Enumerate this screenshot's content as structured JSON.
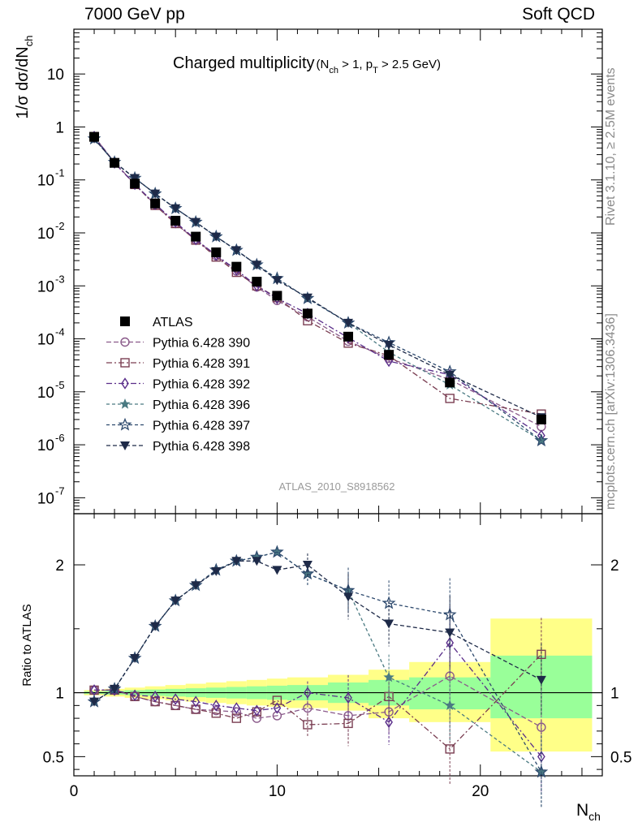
{
  "header": {
    "left": "7000 GeV pp",
    "right": "Soft QCD"
  },
  "side_labels": {
    "rivet": "Rivet 3.1.10, ≥ 2.5M events",
    "mcplots": "mcplots.cern.ch [arXiv:1306.3436]"
  },
  "colors": {
    "band_green": "#99ff99",
    "band_yellow": "#ffff88",
    "atlas": "#000000",
    "p390": "#8a5a8a",
    "p391": "#7a3e52",
    "p392": "#5a2e8a",
    "p396": "#4a7a82",
    "p397": "#2e4a6e",
    "p398": "#1e2a48"
  },
  "chart_data": [
    {
      "type": "scatter",
      "title": "Charged multiplicity",
      "title_sub": "(N_ch > 1, p_T > 2.5 GeV)",
      "ylabel": "1/σ dσ/dN_ch",
      "xlabel": "",
      "log_y": true,
      "xlim": [
        0,
        26
      ],
      "ylim": [
        5e-08,
        70
      ],
      "watermark": "ATLAS_2010_S8918562",
      "legend_position": "lower-left",
      "x": [
        1,
        2,
        3,
        4,
        5,
        6,
        7,
        8,
        9,
        10,
        11.5,
        13.5,
        15.5,
        18.5,
        23
      ],
      "series": [
        {
          "name": "ATLAS",
          "key": "atlas",
          "marker": "square-filled",
          "values": [
            0.65,
            0.21,
            0.085,
            0.036,
            0.017,
            0.0085,
            0.0043,
            0.0023,
            0.0012,
            0.00065,
            0.0003,
            0.00011,
            5e-05,
            1.5e-05,
            3e-06
          ]
        },
        {
          "name": "Pythia 6.428 390",
          "key": "p390",
          "marker": "circle-open",
          "values": [
            0.66,
            0.215,
            0.083,
            0.034,
            0.015,
            0.0074,
            0.0037,
            0.0019,
            0.00095,
            0.00053,
            0.00026,
            9e-05,
            4.3e-05,
            1.7e-05,
            2.2e-06
          ]
        },
        {
          "name": "Pythia 6.428 391",
          "key": "p391",
          "marker": "square-open",
          "values": [
            0.66,
            0.21,
            0.082,
            0.033,
            0.015,
            0.0073,
            0.0035,
            0.0018,
            0.001,
            0.0006,
            0.00022,
            8.3e-05,
            4.8e-05,
            7.5e-06,
            3.8e-06
          ]
        },
        {
          "name": "Pythia 6.428 392",
          "key": "p392",
          "marker": "diamond-open",
          "values": [
            0.66,
            0.21,
            0.083,
            0.035,
            0.016,
            0.0075,
            0.0038,
            0.002,
            0.001,
            0.00058,
            0.0003,
            0.000105,
            3.8e-05,
            2.1e-05,
            1.5e-06
          ]
        },
        {
          "name": "Pythia 6.428 396",
          "key": "p396",
          "marker": "star-filled",
          "values": [
            0.6,
            0.215,
            0.108,
            0.055,
            0.029,
            0.016,
            0.0085,
            0.0047,
            0.0025,
            0.00138,
            0.00058,
            0.0002,
            5.6e-05,
            1.35e-05,
            1.2e-06
          ]
        },
        {
          "name": "Pythia 6.428 397",
          "key": "p397",
          "marker": "star-open",
          "values": [
            0.6,
            0.215,
            0.108,
            0.055,
            0.029,
            0.016,
            0.0085,
            0.0047,
            0.0025,
            0.00138,
            0.00058,
            0.0002,
            8.5e-05,
            2.4e-05,
            1.2e-06
          ]
        },
        {
          "name": "Pythia 6.428 398",
          "key": "p398",
          "marker": "triangle-down-filled",
          "values": [
            0.6,
            0.215,
            0.108,
            0.055,
            0.029,
            0.016,
            0.0085,
            0.0047,
            0.0025,
            0.00128,
            0.0006,
            0.0002,
            7.7e-05,
            2.1e-05,
            3.3e-06
          ]
        }
      ]
    },
    {
      "type": "scatter",
      "ylabel": "Ratio to ATLAS",
      "xlabel": "N_ch",
      "xlim": [
        0,
        26
      ],
      "ylim": [
        0.35,
        2.4
      ],
      "y_ticks": [
        0.5,
        1,
        2
      ],
      "x_ticks": [
        0,
        10,
        20
      ],
      "x": [
        1,
        2,
        3,
        4,
        5,
        6,
        7,
        8,
        9,
        10,
        11.5,
        13.5,
        15.5,
        18.5,
        23
      ],
      "bands": [
        {
          "xlo": 0.5,
          "xhi": 1.5,
          "green": [
            0.99,
            1.01
          ],
          "yellow": [
            0.98,
            1.02
          ]
        },
        {
          "xlo": 1.5,
          "xhi": 2.5,
          "green": [
            0.985,
            1.015
          ],
          "yellow": [
            0.97,
            1.03
          ]
        },
        {
          "xlo": 2.5,
          "xhi": 3.5,
          "green": [
            0.98,
            1.02
          ],
          "yellow": [
            0.96,
            1.04
          ]
        },
        {
          "xlo": 3.5,
          "xhi": 4.5,
          "green": [
            0.975,
            1.025
          ],
          "yellow": [
            0.95,
            1.05
          ]
        },
        {
          "xlo": 4.5,
          "xhi": 5.5,
          "green": [
            0.97,
            1.03
          ],
          "yellow": [
            0.94,
            1.06
          ]
        },
        {
          "xlo": 5.5,
          "xhi": 6.5,
          "green": [
            0.965,
            1.035
          ],
          "yellow": [
            0.93,
            1.07
          ]
        },
        {
          "xlo": 6.5,
          "xhi": 7.5,
          "green": [
            0.96,
            1.04
          ],
          "yellow": [
            0.92,
            1.08
          ]
        },
        {
          "xlo": 7.5,
          "xhi": 8.5,
          "green": [
            0.955,
            1.045
          ],
          "yellow": [
            0.91,
            1.09
          ]
        },
        {
          "xlo": 8.5,
          "xhi": 9.5,
          "green": [
            0.95,
            1.05
          ],
          "yellow": [
            0.9,
            1.1
          ]
        },
        {
          "xlo": 9.5,
          "xhi": 10.5,
          "green": [
            0.945,
            1.055
          ],
          "yellow": [
            0.89,
            1.11
          ]
        },
        {
          "xlo": 10.5,
          "xhi": 12.5,
          "green": [
            0.94,
            1.06
          ],
          "yellow": [
            0.88,
            1.12
          ]
        },
        {
          "xlo": 12.5,
          "xhi": 14.5,
          "green": [
            0.92,
            1.08
          ],
          "yellow": [
            0.86,
            1.14
          ]
        },
        {
          "xlo": 14.5,
          "xhi": 16.5,
          "green": [
            0.9,
            1.1
          ],
          "yellow": [
            0.8,
            1.18
          ]
        },
        {
          "xlo": 16.5,
          "xhi": 20.5,
          "green": [
            0.87,
            1.12
          ],
          "yellow": [
            0.77,
            1.24
          ]
        },
        {
          "xlo": 20.5,
          "xhi": 25.5,
          "green": [
            0.8,
            1.29
          ],
          "yellow": [
            0.54,
            1.58
          ]
        }
      ],
      "series": [
        {
          "name": "Pythia 6.428 390",
          "key": "p390",
          "marker": "circle-open",
          "values": [
            1.02,
            1.02,
            0.97,
            0.93,
            0.9,
            0.87,
            0.86,
            0.85,
            0.8,
            0.82,
            0.88,
            0.82,
            0.85,
            1.13,
            0.73
          ]
        },
        {
          "name": "Pythia 6.428 391",
          "key": "p391",
          "marker": "square-open",
          "values": [
            1.02,
            1.02,
            0.97,
            0.93,
            0.9,
            0.87,
            0.84,
            0.8,
            0.85,
            0.94,
            0.75,
            0.76,
            0.97,
            0.56,
            1.3
          ]
        },
        {
          "name": "Pythia 6.428 392",
          "key": "p392",
          "marker": "diamond-open",
          "values": [
            1.02,
            1.02,
            0.98,
            0.97,
            0.95,
            0.93,
            0.9,
            0.88,
            0.86,
            0.88,
            1.0,
            0.96,
            0.77,
            1.39,
            0.5
          ]
        },
        {
          "name": "Pythia 6.428 396",
          "key": "p396",
          "marker": "star-filled",
          "values": [
            0.93,
            1.03,
            1.27,
            1.52,
            1.72,
            1.84,
            1.96,
            2.03,
            2.06,
            2.1,
            1.93,
            1.8,
            1.12,
            0.9,
            0.38
          ]
        },
        {
          "name": "Pythia 6.428 397",
          "key": "p397",
          "marker": "star-open",
          "values": [
            0.93,
            1.03,
            1.27,
            1.52,
            1.72,
            1.84,
            1.96,
            2.03,
            2.06,
            2.1,
            1.93,
            1.8,
            1.7,
            1.61,
            0.38
          ]
        },
        {
          "name": "Pythia 6.428 398",
          "key": "p398",
          "marker": "triangle-down-filled",
          "values": [
            0.93,
            1.03,
            1.27,
            1.52,
            1.72,
            1.84,
            1.95,
            2.03,
            2.03,
            1.96,
            2.0,
            1.75,
            1.54,
            1.47,
            1.1
          ]
        }
      ]
    }
  ]
}
